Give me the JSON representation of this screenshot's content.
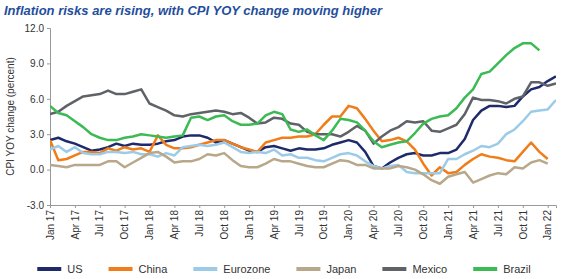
{
  "chart_data": {
    "type": "line",
    "title": "Inflation risks are rising, with CPI YOY change moving higher",
    "y_label": "CPI YOY change (percent)",
    "categories": [
      "Jan 17",
      null,
      null,
      "Apr 17",
      null,
      null,
      "Jul 17",
      null,
      null,
      "Oct 17",
      null,
      null,
      "Jan 18",
      null,
      null,
      "Apr 18",
      null,
      null,
      "Jul 18",
      null,
      null,
      "Oct 18",
      null,
      null,
      "Jan 19",
      null,
      null,
      "Apr 19",
      null,
      null,
      "Jul 19",
      null,
      null,
      "Oct 19",
      null,
      null,
      "Jan 20",
      null,
      null,
      "Apr 20",
      null,
      null,
      "Jul 20",
      null,
      null,
      "Oct 20",
      null,
      null,
      "Jan 21",
      null,
      null,
      "Apr 21",
      null,
      null,
      "Jul 21",
      null,
      null,
      "Oct 21",
      null,
      null,
      "Jan 22",
      null
    ],
    "ylim": [
      -3,
      12
    ],
    "yticks": [
      {
        "value": -3,
        "label": "-3.0"
      },
      {
        "value": 0,
        "label": "0.0"
      },
      {
        "value": 3,
        "label": "3.0"
      },
      {
        "value": 6,
        "label": "6.0"
      },
      {
        "value": 9,
        "label": "9.0"
      },
      {
        "value": 12,
        "label": "12.0"
      }
    ],
    "grid": false,
    "legend": "bottom",
    "series": [
      {
        "name": "US",
        "color": "#1f2a6b",
        "values": [
          2.5,
          2.7,
          2.4,
          2.2,
          1.9,
          1.6,
          1.7,
          1.9,
          2.2,
          2.0,
          2.2,
          2.1,
          2.1,
          2.2,
          2.4,
          2.5,
          2.8,
          2.9,
          2.9,
          2.7,
          2.3,
          2.5,
          2.2,
          1.9,
          1.6,
          1.5,
          1.9,
          2.0,
          1.8,
          1.6,
          1.8,
          1.7,
          1.7,
          1.8,
          2.1,
          2.3,
          2.5,
          2.3,
          1.5,
          0.3,
          0.1,
          0.6,
          1.0,
          1.3,
          1.4,
          1.2,
          1.2,
          1.4,
          1.4,
          1.7,
          2.6,
          4.2,
          5.0,
          5.4,
          5.4,
          5.3,
          5.4,
          6.2,
          6.8,
          7.0,
          7.5,
          7.9
        ]
      },
      {
        "name": "China",
        "color": "#f07d1a",
        "values": [
          2.5,
          0.8,
          0.9,
          1.2,
          1.5,
          1.5,
          1.4,
          1.8,
          1.6,
          1.9,
          1.7,
          1.8,
          1.5,
          2.9,
          2.1,
          1.8,
          1.8,
          1.9,
          2.1,
          2.3,
          2.5,
          2.5,
          2.2,
          1.9,
          1.7,
          1.5,
          2.3,
          2.5,
          2.7,
          2.7,
          2.8,
          2.8,
          3.0,
          3.8,
          4.5,
          4.5,
          5.4,
          5.2,
          4.3,
          3.3,
          2.4,
          2.5,
          2.7,
          2.4,
          1.7,
          0.5,
          -0.5,
          0.2,
          -0.3,
          -0.2,
          0.4,
          0.9,
          1.3,
          1.1,
          1.0,
          0.8,
          0.7,
          1.5,
          2.3,
          1.5,
          0.9,
          null
        ]
      },
      {
        "name": "Eurozone",
        "color": "#9ccbe8",
        "values": [
          1.7,
          2.0,
          1.5,
          1.9,
          1.4,
          1.3,
          1.3,
          1.5,
          1.5,
          1.4,
          1.5,
          1.3,
          1.3,
          1.1,
          1.4,
          1.2,
          1.9,
          2.0,
          2.1,
          2.0,
          2.1,
          2.3,
          1.9,
          1.5,
          1.4,
          1.5,
          1.4,
          1.7,
          1.2,
          1.3,
          1.0,
          1.0,
          0.8,
          0.7,
          1.0,
          1.3,
          1.4,
          1.2,
          0.7,
          0.3,
          0.1,
          0.3,
          0.4,
          -0.2,
          -0.3,
          -0.3,
          -0.3,
          -0.3,
          0.9,
          0.9,
          1.3,
          1.6,
          2.0,
          1.9,
          2.2,
          3.0,
          3.4,
          4.1,
          4.9,
          5.0,
          5.1,
          5.9
        ]
      },
      {
        "name": "Japan",
        "color": "#b8a88a",
        "values": [
          0.4,
          0.3,
          0.2,
          0.4,
          0.4,
          0.4,
          0.4,
          0.7,
          0.7,
          0.2,
          0.6,
          1.0,
          1.4,
          1.5,
          1.1,
          0.6,
          0.7,
          0.7,
          0.9,
          1.3,
          1.2,
          1.4,
          0.8,
          0.3,
          0.2,
          0.2,
          0.5,
          0.9,
          0.7,
          0.7,
          0.5,
          0.3,
          0.2,
          0.2,
          0.5,
          0.8,
          0.7,
          0.4,
          0.4,
          0.1,
          0.1,
          0.1,
          0.3,
          0.2,
          0.0,
          -0.4,
          -0.9,
          -1.2,
          -0.6,
          -0.4,
          -0.2,
          -1.1,
          -0.8,
          -0.5,
          -0.3,
          -0.4,
          0.2,
          0.1,
          0.6,
          0.8,
          0.5,
          null
        ]
      },
      {
        "name": "Mexico",
        "color": "#5f6368",
        "values": [
          4.7,
          4.9,
          5.4,
          5.8,
          6.2,
          6.3,
          6.4,
          6.7,
          6.4,
          6.4,
          6.6,
          6.8,
          5.6,
          5.3,
          5.0,
          4.6,
          4.5,
          4.7,
          4.8,
          4.9,
          5.0,
          4.9,
          4.7,
          4.8,
          4.4,
          3.9,
          4.0,
          4.4,
          4.3,
          3.9,
          3.8,
          3.2,
          3.0,
          3.0,
          3.0,
          2.8,
          3.2,
          3.7,
          3.3,
          2.2,
          2.8,
          3.3,
          3.6,
          4.1,
          4.0,
          4.1,
          3.3,
          3.2,
          3.5,
          3.8,
          4.7,
          6.1,
          5.9,
          5.9,
          5.8,
          5.6,
          6.0,
          6.2,
          7.4,
          7.4,
          7.1,
          7.3
        ]
      },
      {
        "name": "Brazil",
        "color": "#3cba54",
        "values": [
          5.4,
          4.8,
          4.6,
          4.1,
          3.6,
          3.0,
          2.7,
          2.5,
          2.5,
          2.7,
          2.8,
          3.0,
          2.9,
          2.8,
          2.7,
          2.8,
          2.9,
          4.4,
          4.5,
          4.2,
          4.5,
          4.6,
          4.1,
          3.8,
          3.8,
          3.9,
          4.6,
          4.9,
          4.7,
          3.4,
          3.2,
          3.4,
          2.9,
          2.5,
          3.3,
          4.3,
          4.2,
          4.0,
          3.3,
          2.4,
          1.9,
          2.1,
          2.3,
          2.4,
          3.1,
          3.9,
          4.3,
          4.5,
          4.6,
          5.2,
          6.1,
          6.8,
          8.1,
          8.3,
          9.0,
          9.7,
          10.3,
          10.7,
          10.7,
          10.1,
          null,
          null
        ]
      }
    ]
  }
}
